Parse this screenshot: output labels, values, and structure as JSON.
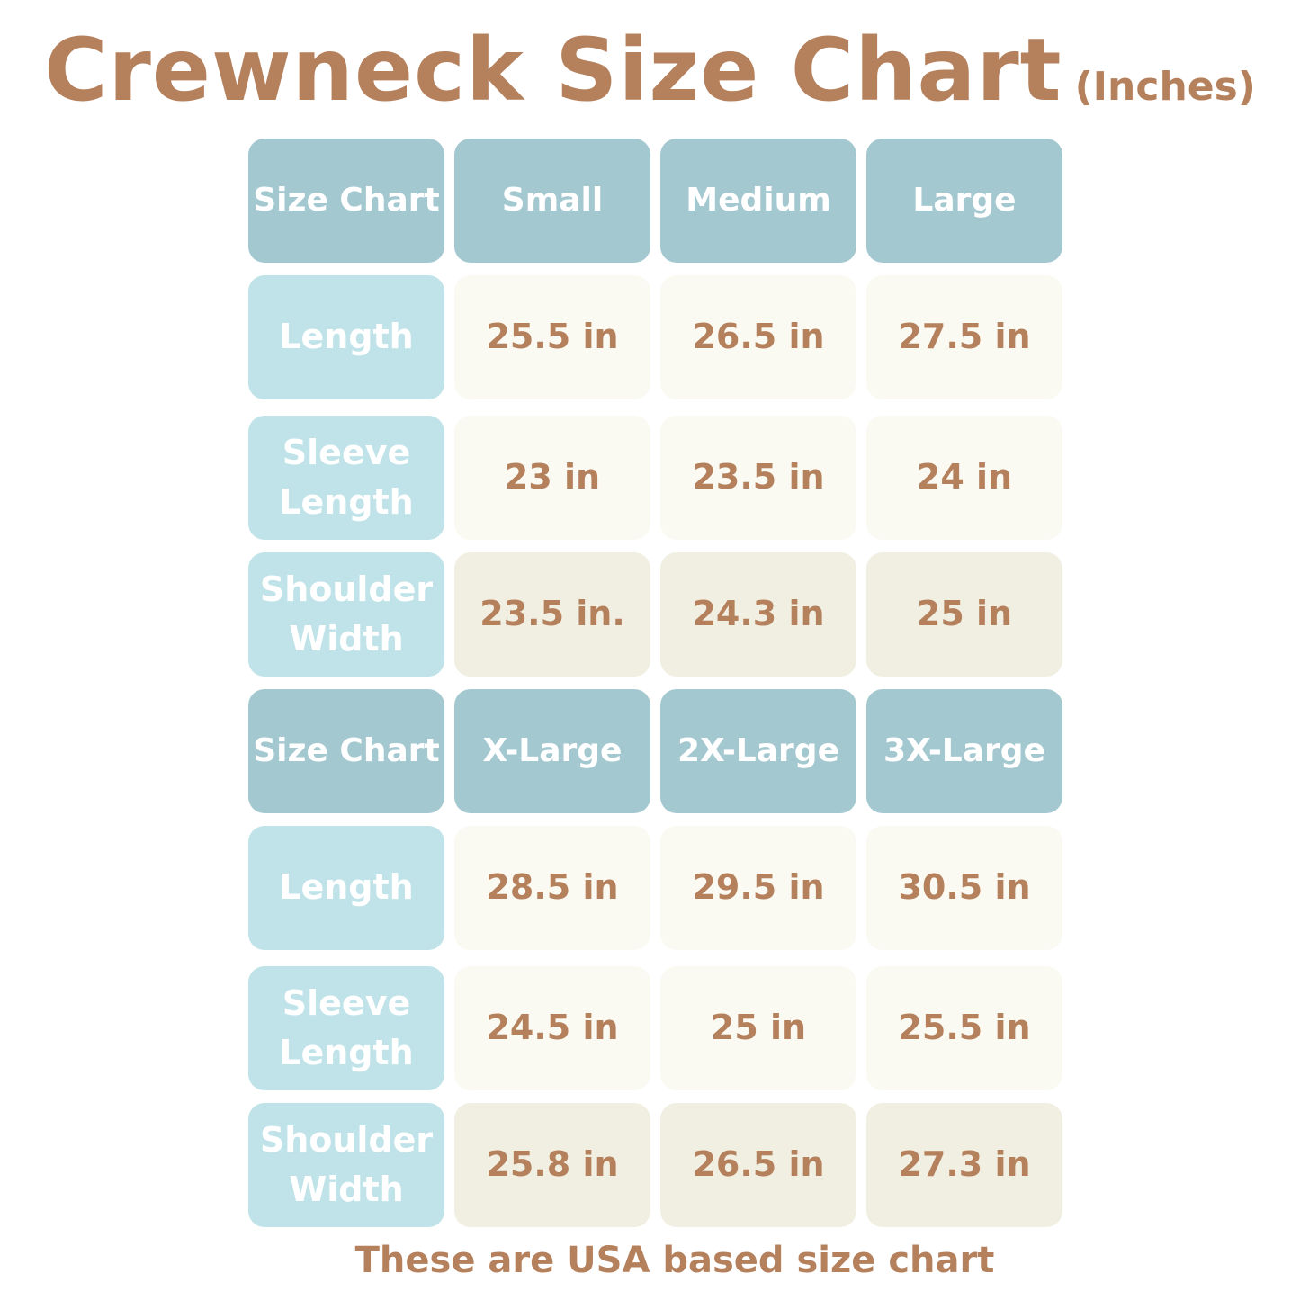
{
  "title": {
    "main": "Crewneck Size Chart",
    "unit": "(Inches)"
  },
  "tables": [
    {
      "header": [
        "Size Chart",
        "Small",
        "Medium",
        "Large"
      ],
      "rows": [
        {
          "label": "Length",
          "values": [
            "25.5 in",
            "26.5 in",
            "27.5 in"
          ]
        },
        {
          "label": "Sleeve Length",
          "values": [
            "23 in",
            "23.5 in",
            "24 in"
          ]
        },
        {
          "label": "Shoulder Width",
          "values": [
            "23.5 in.",
            "24.3 in",
            "25 in"
          ]
        }
      ]
    },
    {
      "header": [
        "Size Chart",
        "X-Large",
        "2X-Large",
        "3X-Large"
      ],
      "rows": [
        {
          "label": "Length",
          "values": [
            "28.5 in",
            "29.5 in",
            "30.5 in"
          ]
        },
        {
          "label": "Sleeve Length",
          "values": [
            "24.5 in",
            "25 in",
            "25.5 in"
          ]
        },
        {
          "label": "Shoulder Width",
          "values": [
            "25.8 in",
            "26.5 in",
            "27.3 in"
          ]
        }
      ]
    }
  ],
  "footer": "These are USA based size chart",
  "colors": {
    "accent_text": "#b5805c",
    "header_bg": "#a3c8d0",
    "label_bg": "#bfe3e8",
    "value_bg": "#fafaf3",
    "value_alt_bg": "#f0efe2"
  }
}
